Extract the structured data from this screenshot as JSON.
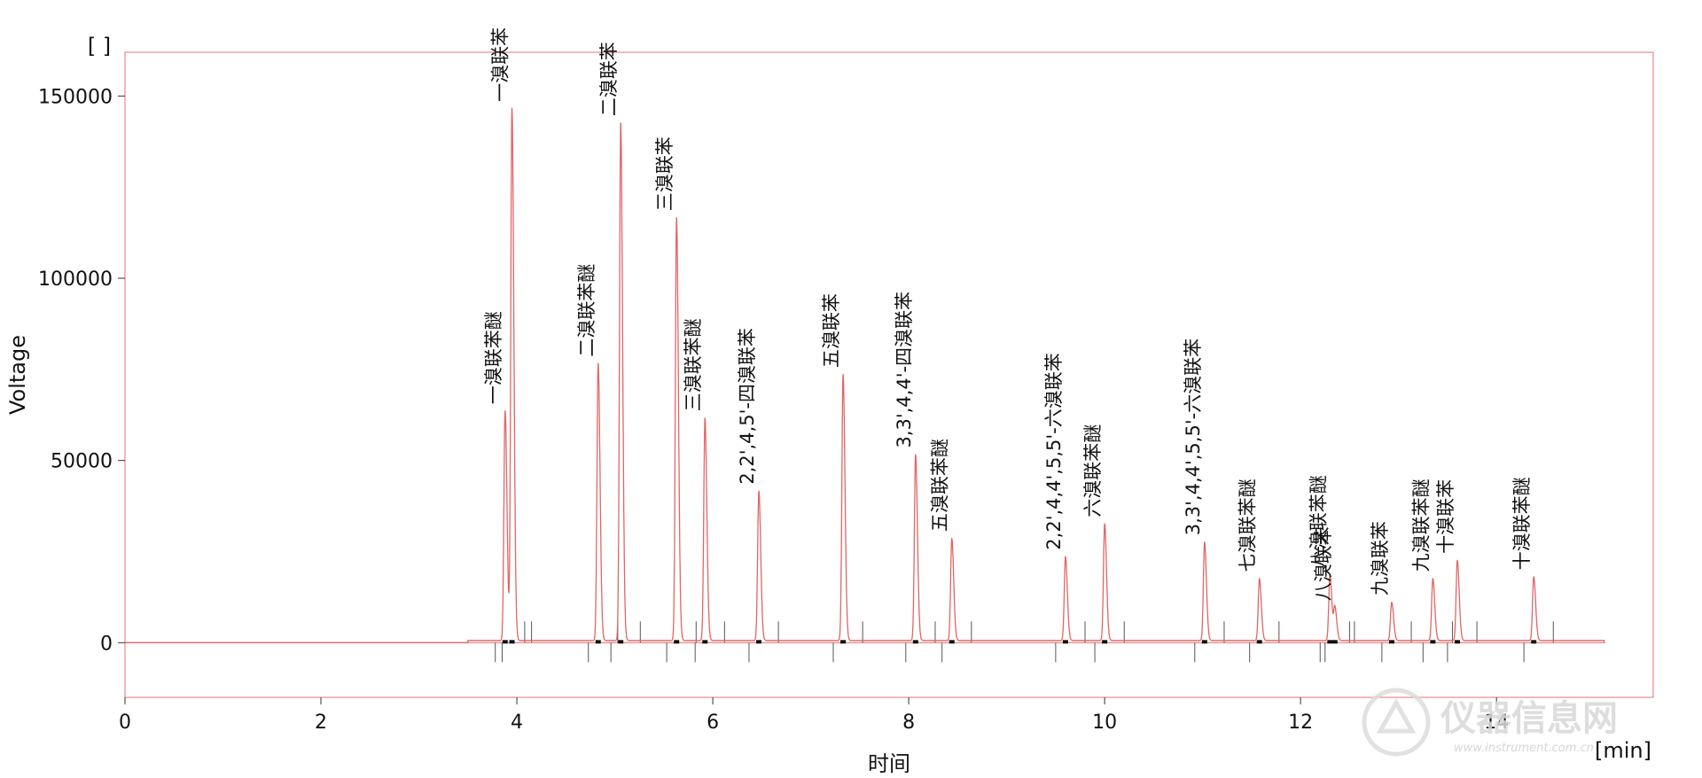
{
  "chart_data": {
    "type": "line",
    "title": "",
    "xlabel": "时间",
    "x_unit": "[min]",
    "ylabel": "Voltage",
    "y_unit": "[ ]",
    "xlim": [
      0,
      15.6
    ],
    "ylim": [
      -15000,
      162000
    ],
    "x_ticks": [
      0,
      2,
      4,
      6,
      8,
      10,
      12,
      14
    ],
    "y_ticks": [
      0,
      50000,
      100000,
      150000
    ],
    "grid": false,
    "trace_color": "#e06666",
    "trace_range": [
      3.5,
      15.1
    ],
    "peaks": [
      {
        "label": "一溴联苯醚",
        "rt": 3.88,
        "height": 63000
      },
      {
        "label": "一溴联苯",
        "rt": 3.95,
        "height": 146000
      },
      {
        "label": "二溴联苯醚",
        "rt": 4.83,
        "height": 76000
      },
      {
        "label": "二溴联苯",
        "rt": 5.06,
        "height": 142000
      },
      {
        "label": "三溴联苯",
        "rt": 5.63,
        "height": 116000
      },
      {
        "label": "三溴联苯醚",
        "rt": 5.92,
        "height": 61000
      },
      {
        "label": "2,2',4,5'-四溴联苯",
        "rt": 6.47,
        "height": 41000
      },
      {
        "label": "五溴联苯",
        "rt": 7.33,
        "height": 73000
      },
      {
        "label": "3,3',4,4'-四溴联苯",
        "rt": 8.07,
        "height": 51000
      },
      {
        "label": "五溴联苯醚",
        "rt": 8.44,
        "height": 28000
      },
      {
        "label": "2,2',4,4',5,5'-六溴联苯",
        "rt": 9.6,
        "height": 23000
      },
      {
        "label": "六溴联苯醚",
        "rt": 10.0,
        "height": 32000
      },
      {
        "label": "3,3',4,4',5,5'-六溴联苯",
        "rt": 11.02,
        "height": 27000
      },
      {
        "label": "七溴联苯醚",
        "rt": 11.58,
        "height": 17000
      },
      {
        "label": "八溴联苯醚",
        "rt": 12.3,
        "height": 18000
      },
      {
        "label": "八溴联苯",
        "rt": 12.35,
        "height": 9000
      },
      {
        "label": "九溴联苯",
        "rt": 12.93,
        "height": 10500
      },
      {
        "label": "九溴联苯醚",
        "rt": 13.35,
        "height": 17000
      },
      {
        "label": "十溴联苯",
        "rt": 13.6,
        "height": 22000
      },
      {
        "label": "十溴联苯醚",
        "rt": 14.38,
        "height": 17500
      }
    ]
  },
  "watermark": {
    "name": "仪器信息网",
    "url": "www.instrument.com.cn"
  }
}
